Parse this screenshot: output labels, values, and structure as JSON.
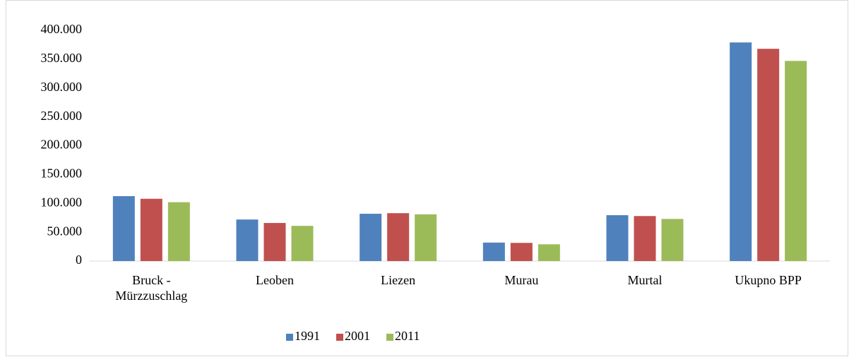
{
  "chart_data": {
    "type": "bar",
    "categories": [
      "Bruck - Mürzzuschlag",
      "Leoben",
      "Liezen",
      "Murau",
      "Murtal",
      "Ukupno BPP"
    ],
    "series": [
      {
        "name": "1991",
        "color": "#4f81bd",
        "values": [
          112500,
          72000,
          82000,
          32000,
          79500,
          379000
        ]
      },
      {
        "name": "2001",
        "color": "#c0504d",
        "values": [
          108000,
          66000,
          83000,
          31500,
          78000,
          368000
        ]
      },
      {
        "name": "2011",
        "color": "#9bbb59",
        "values": [
          102000,
          61000,
          81000,
          29000,
          73000,
          347000
        ]
      }
    ],
    "ylim": [
      0,
      400000
    ],
    "yticks": [
      0,
      {
        "value": 50000,
        "label": "50.000"
      },
      {
        "value": 100000,
        "label": "100.000"
      },
      {
        "value": 150000,
        "label": "150.000"
      },
      {
        "value": 200000,
        "label": "200.000"
      },
      {
        "value": 250000,
        "label": "250.000"
      },
      {
        "value": 300000,
        "label": "300.000"
      },
      {
        "value": 350000,
        "label": "350.000"
      },
      {
        "value": 400000,
        "label": "400.000"
      }
    ],
    "grid": false,
    "legend": "bottom"
  }
}
